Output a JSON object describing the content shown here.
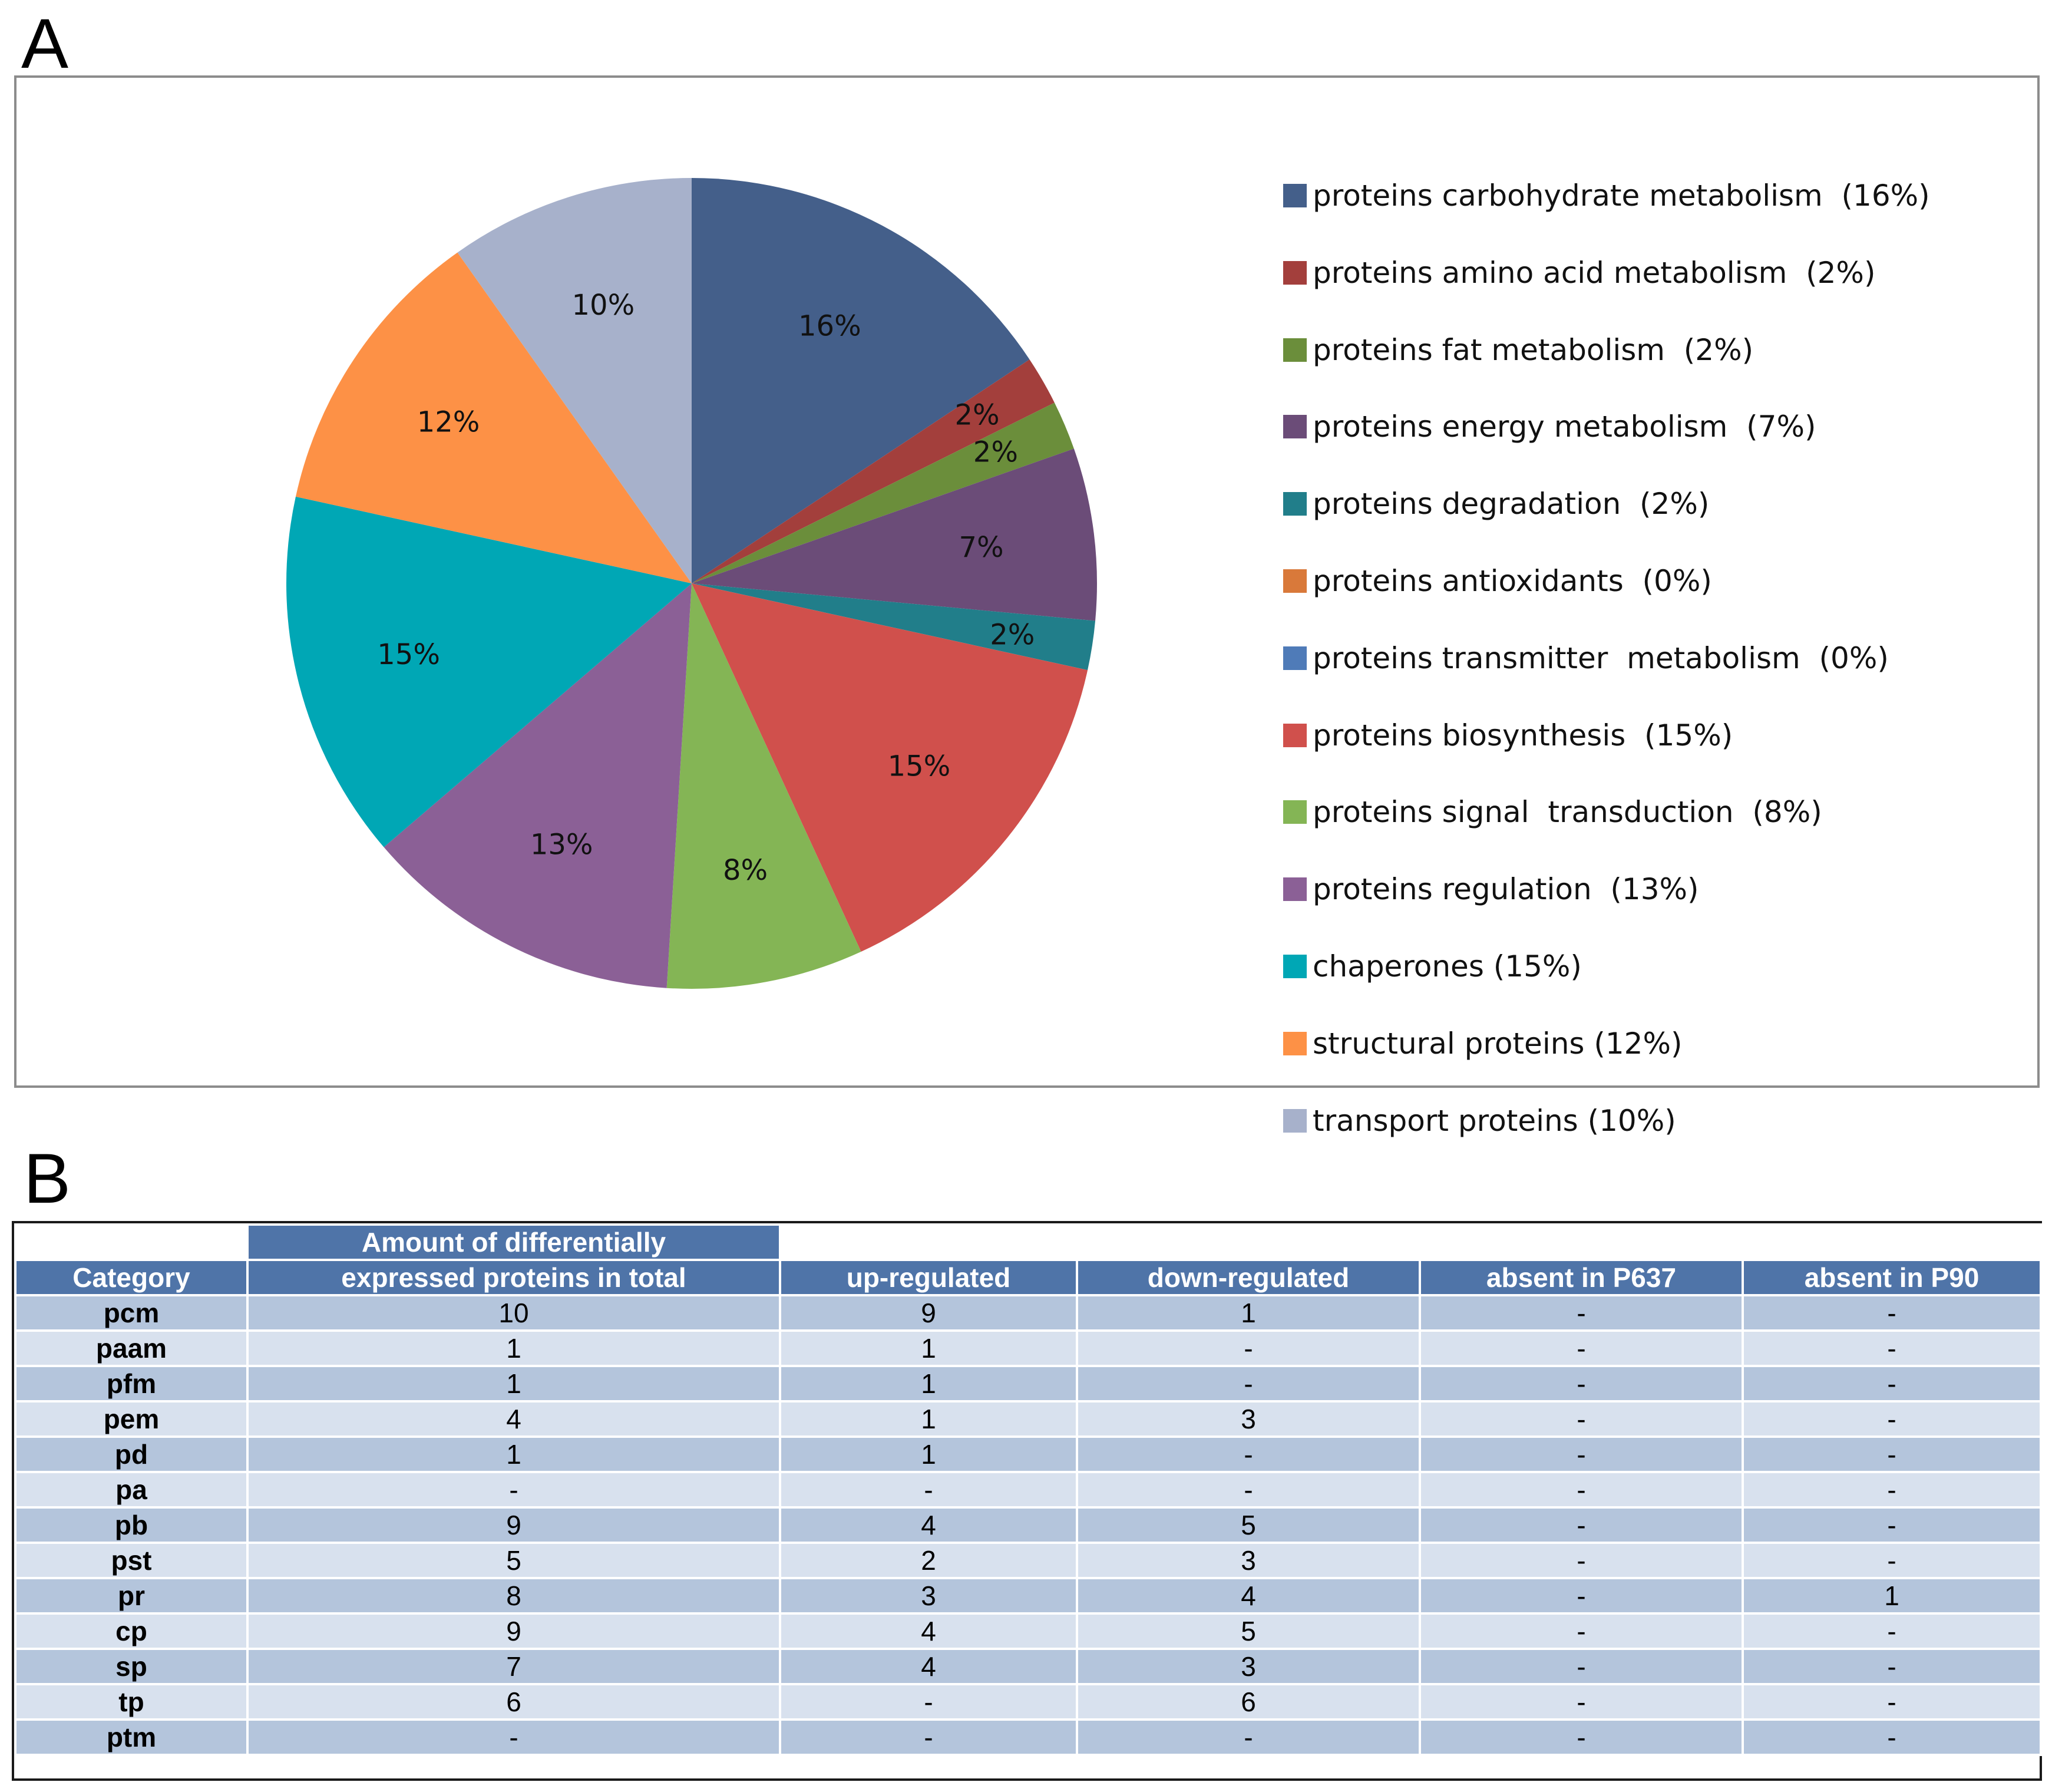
{
  "panel_a": {
    "letter": "A"
  },
  "panel_b": {
    "letter": "B"
  },
  "chart_data": {
    "type": "pie",
    "title": "",
    "slices": [
      {
        "label": "16%",
        "legend": "proteins carbohydrate metabolism  (16%)",
        "value": 16,
        "color": "#445f8a"
      },
      {
        "label": "2%",
        "legend": "proteins amino acid metabolism  (2%)",
        "value": 2,
        "color": "#a33f3c"
      },
      {
        "label": "2%",
        "legend": "proteins fat metabolism  (2%)",
        "value": 2,
        "color": "#6b8e3b"
      },
      {
        "label": "7%",
        "legend": "proteins energy metabolism  (7%)",
        "value": 7,
        "color": "#6b4c78"
      },
      {
        "label": "2%",
        "legend": "proteins degradation  (2%)",
        "value": 2,
        "color": "#217e8a"
      },
      {
        "label": "",
        "legend": "proteins antioxidants  (0%)",
        "value": 0,
        "color": "#d9793a"
      },
      {
        "label": "",
        "legend": "proteins transmitter  metabolism  (0%)",
        "value": 0,
        "color": "#4f7bb8"
      },
      {
        "label": "15%",
        "legend": "proteins biosynthesis  (15%)",
        "value": 15,
        "color": "#d0504c"
      },
      {
        "label": "8%",
        "legend": "proteins signal  transduction  (8%)",
        "value": 8,
        "color": "#84b555"
      },
      {
        "label": "13%",
        "legend": "proteins regulation  (13%)",
        "value": 13,
        "color": "#8b6096"
      },
      {
        "label": "15%",
        "legend": "chaperones (15%)",
        "value": 15,
        "color": "#00a7b5"
      },
      {
        "label": "12%",
        "legend": "structural proteins (12%)",
        "value": 12,
        "color": "#fd9146"
      },
      {
        "label": "10%",
        "legend": "transport proteins (10%)",
        "value": 10,
        "color": "#a7b1cb"
      }
    ],
    "legend_position": "right"
  },
  "table": {
    "header_top": "Amount of differentially",
    "headers": [
      "Category",
      "expressed proteins in total",
      "up-regulated",
      "down-regulated",
      "absent in P637",
      "absent in P90"
    ],
    "rows": [
      [
        "pcm",
        "10",
        "9",
        "1",
        "-",
        "-"
      ],
      [
        "paam",
        "1",
        "1",
        "-",
        "-",
        "-"
      ],
      [
        "pfm",
        "1",
        "1",
        "-",
        "-",
        "-"
      ],
      [
        "pem",
        "4",
        "1",
        "3",
        "-",
        "-"
      ],
      [
        "pd",
        "1",
        "1",
        "-",
        "-",
        "-"
      ],
      [
        "pa",
        "-",
        "-",
        "-",
        "-",
        "-"
      ],
      [
        "pb",
        "9",
        "4",
        "5",
        "-",
        "-"
      ],
      [
        "pst",
        "5",
        "2",
        "3",
        "-",
        "-"
      ],
      [
        "pr",
        "8",
        "3",
        "4",
        "-",
        "1"
      ],
      [
        "cp",
        "9",
        "4",
        "5",
        "-",
        "-"
      ],
      [
        "sp",
        "7",
        "4",
        "3",
        "-",
        "-"
      ],
      [
        "tp",
        "6",
        "-",
        "6",
        "-",
        "-"
      ],
      [
        "ptm",
        "-",
        "-",
        "-",
        "-",
        "-"
      ]
    ]
  }
}
